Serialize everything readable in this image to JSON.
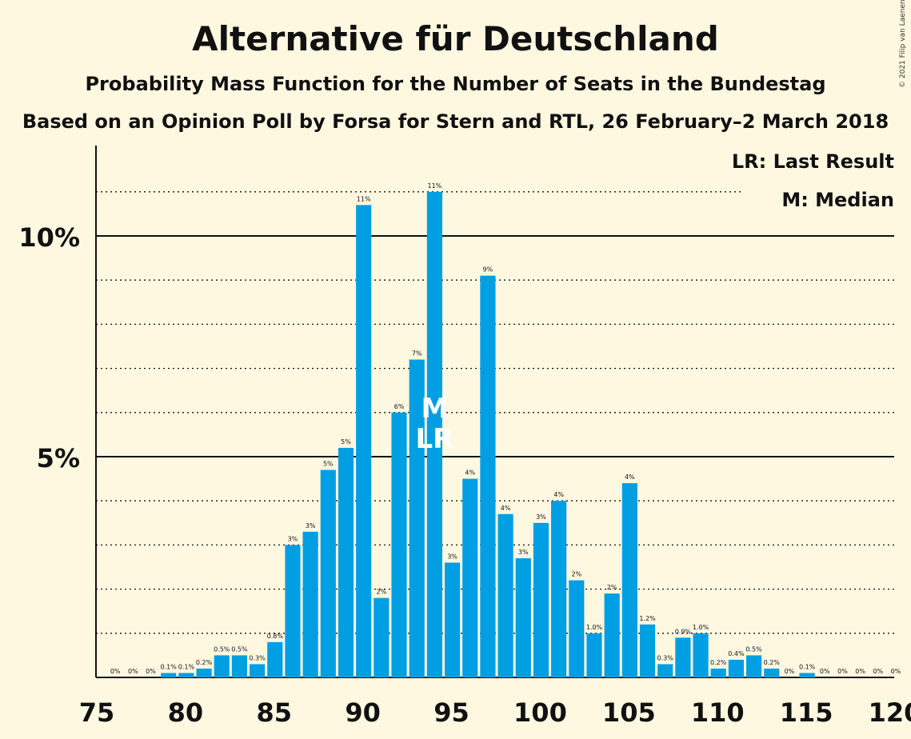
{
  "title": "Alternative für Deutschland",
  "subtitle": "Probability Mass Function for the Number of Seats in the Bundestag",
  "subtitle2": "Based on an Opinion Poll by Forsa for Stern and RTL, 26 February–2 March 2018",
  "copyright": "© 2021 Filip van Laenen",
  "legend": {
    "last_result": "LR: Last Result",
    "median": "M: Median"
  },
  "colors": {
    "bar": "#009fe3",
    "background": "#fff8e1",
    "text": "#111111"
  },
  "chart_data": {
    "type": "bar",
    "xlabel": "",
    "ylabel": "",
    "xlim": [
      75,
      120
    ],
    "ylim": [
      0,
      12
    ],
    "x_ticks": [
      75,
      80,
      85,
      90,
      95,
      100,
      105,
      110,
      115,
      120
    ],
    "y_ticks": [
      {
        "value": 5,
        "label": "5%"
      },
      {
        "value": 10,
        "label": "10%"
      }
    ],
    "grid": "dotted lines at every 1%, solid lines at 5% and 10%",
    "median": 94,
    "last_result": 94,
    "median_label": "M",
    "last_result_label": "LR",
    "categories": [
      76,
      77,
      78,
      79,
      80,
      81,
      82,
      83,
      84,
      85,
      86,
      87,
      88,
      89,
      90,
      91,
      92,
      93,
      94,
      95,
      96,
      97,
      98,
      99,
      100,
      101,
      102,
      103,
      104,
      105,
      106,
      107,
      108,
      109,
      110,
      111,
      112,
      113,
      114,
      115,
      116,
      117,
      118,
      119,
      120
    ],
    "values": [
      0,
      0,
      0,
      0.1,
      0.1,
      0.2,
      0.5,
      0.5,
      0.3,
      0.8,
      3,
      3.3,
      4.7,
      5.2,
      10.7,
      1.8,
      6,
      7.2,
      11,
      2.6,
      4.5,
      9.1,
      3.7,
      2.7,
      3.5,
      4,
      2.2,
      1.0,
      1.9,
      4.4,
      1.2,
      0.3,
      0.9,
      1.0,
      0.2,
      0.4,
      0.5,
      0.2,
      0,
      0.1,
      0,
      0,
      0,
      0,
      0
    ],
    "data_labels": [
      "0%",
      "0%",
      "0%",
      "0.1%",
      "0.1%",
      "0.2%",
      "0.5%",
      "0.5%",
      "0.3%",
      "0.8%",
      "3%",
      "3%",
      "5%",
      "5%",
      "11%",
      "2%",
      "6%",
      "7%",
      "11%",
      "3%",
      "4%",
      "9%",
      "4%",
      "3%",
      "3%",
      "4%",
      "2%",
      "1.0%",
      "2%",
      "4%",
      "1.2%",
      "0.3%",
      "0.9%",
      "1.0%",
      "0.2%",
      "0.4%",
      "0.5%",
      "0.2%",
      "0%",
      "0.1%",
      "0%",
      "0%",
      "0%",
      "0%",
      "0%"
    ]
  }
}
